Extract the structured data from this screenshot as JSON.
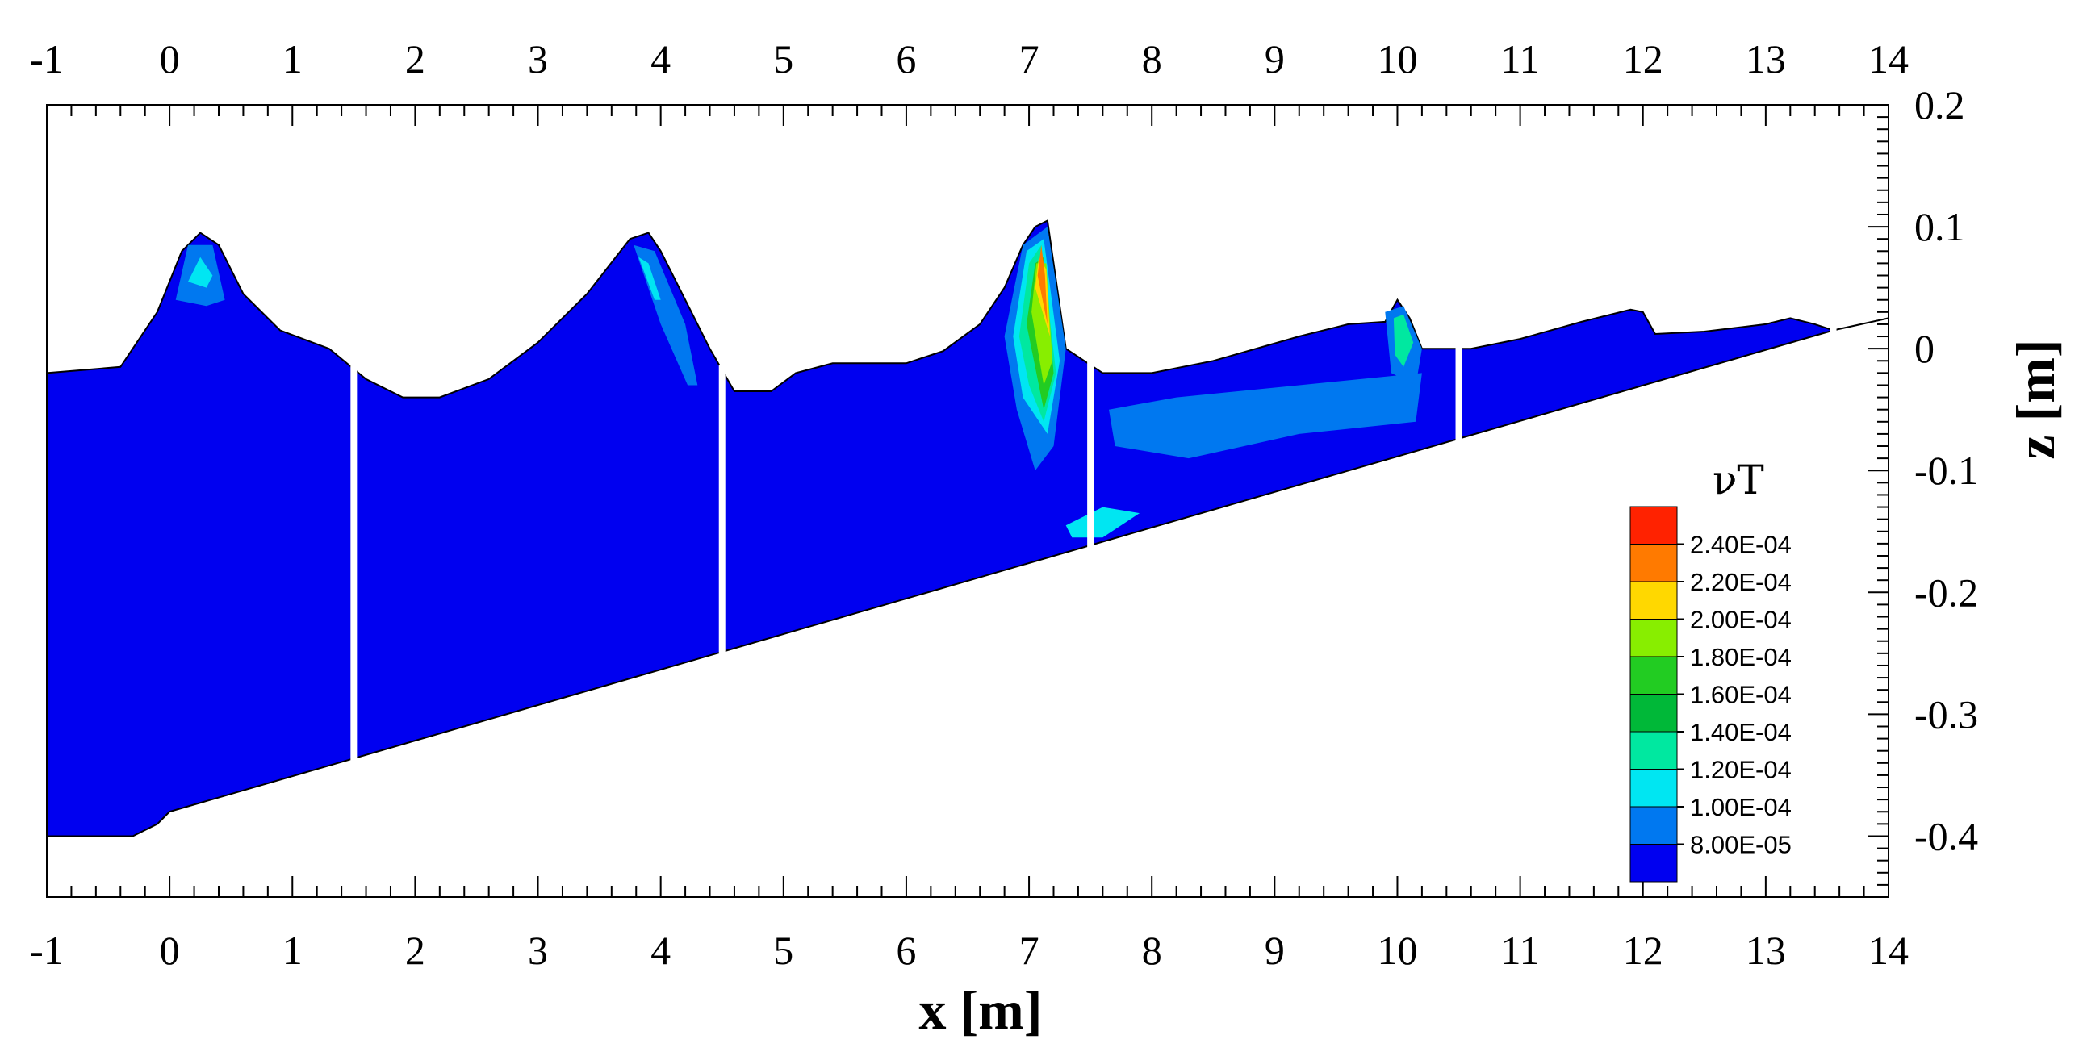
{
  "chart_data": {
    "type": "contour",
    "xlabel": "x [m]",
    "ylabel": "z [m]",
    "xlim": [
      -1,
      14
    ],
    "ylim": [
      -0.45,
      0.2
    ],
    "x_ticks": [
      "-1",
      "0",
      "1",
      "2",
      "3",
      "4",
      "5",
      "6",
      "7",
      "8",
      "9",
      "10",
      "11",
      "12",
      "13",
      "14"
    ],
    "y_ticks": [
      "0.2",
      "0.1",
      "0",
      "-0.1",
      "-0.2",
      "-0.3",
      "-0.4"
    ],
    "legend": {
      "title": "νT",
      "placement": "bottom-right",
      "levels": [
        "2.40E-04",
        "2.20E-04",
        "2.00E-04",
        "1.80E-04",
        "1.60E-04",
        "1.40E-04",
        "1.20E-04",
        "1.00E-04",
        "8.00E-05"
      ],
      "colors": [
        "#ff2200",
        "#ff7a00",
        "#ffd800",
        "#88ee00",
        "#22cc22",
        "#00b838",
        "#00e8a0",
        "#00e6f2",
        "#0078f0",
        "#0000f0"
      ]
    },
    "bed_profile": [
      [
        -1,
        -0.4
      ],
      [
        -0.3,
        -0.4
      ],
      [
        -0.1,
        -0.39
      ],
      [
        0,
        -0.38
      ],
      [
        13.55,
        0.015
      ],
      [
        14,
        0.025
      ]
    ],
    "free_surface": [
      [
        -1,
        -0.02
      ],
      [
        -0.4,
        -0.015
      ],
      [
        -0.1,
        0.03
      ],
      [
        0.1,
        0.08
      ],
      [
        0.25,
        0.095
      ],
      [
        0.4,
        0.085
      ],
      [
        0.6,
        0.045
      ],
      [
        0.9,
        0.015
      ],
      [
        1.3,
        0.0
      ],
      [
        1.6,
        -0.025
      ],
      [
        1.9,
        -0.04
      ],
      [
        2.2,
        -0.04
      ],
      [
        2.6,
        -0.025
      ],
      [
        3.0,
        0.005
      ],
      [
        3.4,
        0.045
      ],
      [
        3.75,
        0.09
      ],
      [
        3.9,
        0.095
      ],
      [
        4.0,
        0.08
      ],
      [
        4.2,
        0.04
      ],
      [
        4.4,
        0.0
      ],
      [
        4.6,
        -0.035
      ],
      [
        4.9,
        -0.035
      ],
      [
        5.1,
        -0.02
      ],
      [
        5.4,
        -0.012
      ],
      [
        5.7,
        -0.012
      ],
      [
        6.0,
        -0.012
      ],
      [
        6.3,
        -0.002
      ],
      [
        6.6,
        0.02
      ],
      [
        6.8,
        0.05
      ],
      [
        6.95,
        0.085
      ],
      [
        7.05,
        0.1
      ],
      [
        7.15,
        0.105
      ],
      [
        7.3,
        0.0
      ],
      [
        7.6,
        -0.02
      ],
      [
        8.0,
        -0.02
      ],
      [
        8.5,
        -0.01
      ],
      [
        9.2,
        0.01
      ],
      [
        9.6,
        0.02
      ],
      [
        9.9,
        0.022
      ],
      [
        10.0,
        0.04
      ],
      [
        10.1,
        0.025
      ],
      [
        10.2,
        0.0
      ],
      [
        10.6,
        0.0
      ],
      [
        11.0,
        0.008
      ],
      [
        11.5,
        0.022
      ],
      [
        11.9,
        0.032
      ],
      [
        12.0,
        0.03
      ],
      [
        12.1,
        0.012
      ],
      [
        12.5,
        0.014
      ],
      [
        13.0,
        0.02
      ],
      [
        13.2,
        0.025
      ],
      [
        13.4,
        0.02
      ],
      [
        13.55,
        0.015
      ],
      [
        14,
        0.025
      ]
    ],
    "gauge_lines_x": [
      1.5,
      4.5,
      7.5,
      10.5,
      13.55
    ],
    "regions": [
      {
        "level": "1.00E-04",
        "points": [
          [
            0.05,
            0.04
          ],
          [
            0.15,
            0.085
          ],
          [
            0.35,
            0.085
          ],
          [
            0.45,
            0.04
          ],
          [
            0.3,
            0.035
          ]
        ]
      },
      {
        "level": "1.20E-04",
        "points": [
          [
            0.15,
            0.055
          ],
          [
            0.25,
            0.075
          ],
          [
            0.35,
            0.06
          ],
          [
            0.3,
            0.05
          ]
        ]
      },
      {
        "level": "1.00E-04",
        "points": [
          [
            3.78,
            0.085
          ],
          [
            3.95,
            0.08
          ],
          [
            4.2,
            0.02
          ],
          [
            4.3,
            -0.03
          ],
          [
            4.22,
            -0.03
          ],
          [
            4.0,
            0.02
          ]
        ]
      },
      {
        "level": "1.20E-04",
        "points": [
          [
            3.82,
            0.075
          ],
          [
            3.9,
            0.07
          ],
          [
            4.0,
            0.04
          ],
          [
            3.95,
            0.04
          ]
        ]
      },
      {
        "level": "1.00E-04",
        "points": [
          [
            6.8,
            0.01
          ],
          [
            6.95,
            0.085
          ],
          [
            7.15,
            0.1
          ],
          [
            7.3,
            0.0
          ],
          [
            7.2,
            -0.08
          ],
          [
            7.05,
            -0.1
          ],
          [
            6.9,
            -0.05
          ]
        ]
      },
      {
        "level": "1.20E-04",
        "points": [
          [
            6.87,
            0.01
          ],
          [
            6.98,
            0.08
          ],
          [
            7.12,
            0.09
          ],
          [
            7.25,
            -0.01
          ],
          [
            7.15,
            -0.07
          ],
          [
            6.95,
            -0.04
          ]
        ]
      },
      {
        "level": "1.40E-04",
        "points": [
          [
            6.92,
            0.01
          ],
          [
            7.0,
            0.07
          ],
          [
            7.1,
            0.085
          ],
          [
            7.22,
            -0.02
          ],
          [
            7.12,
            -0.06
          ],
          [
            7.0,
            -0.03
          ]
        ]
      },
      {
        "level": "1.80E-04",
        "points": [
          [
            6.98,
            0.02
          ],
          [
            7.05,
            0.07
          ],
          [
            7.12,
            0.075
          ],
          [
            7.2,
            -0.02
          ],
          [
            7.12,
            -0.05
          ]
        ]
      },
      {
        "level": "2.00E-04",
        "points": [
          [
            7.02,
            0.03
          ],
          [
            7.06,
            0.07
          ],
          [
            7.14,
            0.07
          ],
          [
            7.19,
            -0.01
          ],
          [
            7.12,
            -0.03
          ]
        ]
      },
      {
        "level": "2.20E-04",
        "points": [
          [
            7.05,
            0.05
          ],
          [
            7.08,
            0.075
          ],
          [
            7.14,
            0.065
          ],
          [
            7.17,
            0.01
          ]
        ]
      },
      {
        "level": "2.40E-04",
        "points": [
          [
            7.07,
            0.06
          ],
          [
            7.1,
            0.085
          ],
          [
            7.13,
            0.06
          ],
          [
            7.15,
            0.02
          ]
        ]
      },
      {
        "level": "1.00E-04",
        "points": [
          [
            7.65,
            -0.05
          ],
          [
            8.2,
            -0.04
          ],
          [
            9.2,
            -0.03
          ],
          [
            10.2,
            -0.02
          ],
          [
            10.15,
            -0.06
          ],
          [
            9.2,
            -0.07
          ],
          [
            8.3,
            -0.09
          ],
          [
            7.7,
            -0.08
          ]
        ]
      },
      {
        "level": "1.00E-04",
        "points": [
          [
            9.9,
            0.03
          ],
          [
            10.05,
            0.035
          ],
          [
            10.2,
            0.0
          ],
          [
            10.15,
            -0.03
          ],
          [
            9.95,
            -0.02
          ]
        ]
      },
      {
        "level": "1.40E-04",
        "points": [
          [
            9.97,
            0.025
          ],
          [
            10.05,
            0.028
          ],
          [
            10.13,
            0.005
          ],
          [
            10.05,
            -0.015
          ],
          [
            9.98,
            -0.005
          ]
        ]
      },
      {
        "level": "1.20E-04",
        "points": [
          [
            7.3,
            -0.145
          ],
          [
            7.6,
            -0.13
          ],
          [
            7.9,
            -0.135
          ],
          [
            7.6,
            -0.155
          ],
          [
            7.35,
            -0.155
          ]
        ]
      }
    ]
  }
}
